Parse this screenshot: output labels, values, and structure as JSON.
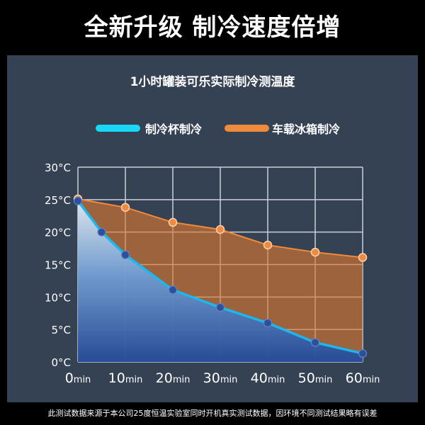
{
  "headline": "全新升级 制冷速度倍增",
  "footnote": "此测试数据来源于本公司25度恒温实验室同时开机真实测试数据，因环境不同测试结果略有误差",
  "colors": {
    "cup": "#19b8f0",
    "fridge": "#f08a3c",
    "point": "#2e4f9c",
    "panel": "#354254"
  },
  "chart_data": {
    "type": "area",
    "title": "1小时罐装可乐实际制冷测温度",
    "legend_position": "top",
    "grid": true,
    "x_unit": "min",
    "y_unit": "°C",
    "xlim": [
      0,
      60
    ],
    "ylim": [
      0,
      30
    ],
    "x_ticks": [
      0,
      10,
      20,
      30,
      40,
      50,
      60
    ],
    "y_ticks": [
      30,
      25,
      20,
      15,
      10,
      5,
      0
    ],
    "series": [
      {
        "name": "制冷杯制冷",
        "x": [
          0,
          5,
          10,
          20,
          30,
          40,
          50,
          60
        ],
        "y": [
          24.8,
          20,
          16.5,
          11.1,
          8.4,
          6,
          3,
          1.3
        ]
      },
      {
        "name": "车载冰箱制冷",
        "x": [
          0,
          10,
          20,
          30,
          40,
          50,
          60
        ],
        "y": [
          25.1,
          23.8,
          21.5,
          20.4,
          18,
          16.9,
          16.1
        ]
      }
    ]
  }
}
